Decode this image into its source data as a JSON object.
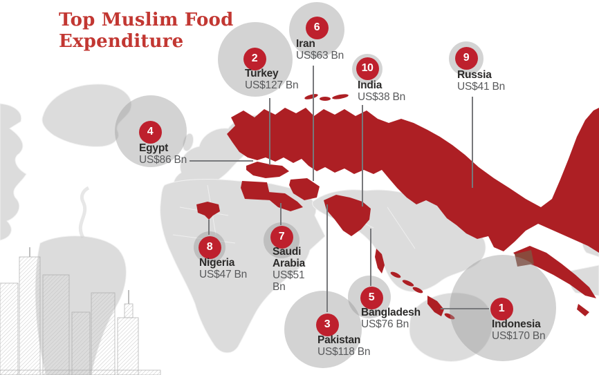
{
  "title": {
    "line1": "Top Muslim Food",
    "line2": "Expenditure"
  },
  "colors": {
    "title_red": "#c23732",
    "badge_red": "#be202d",
    "map_highlight_red": "#ad1f24",
    "land_gray": "#dcdcdc",
    "bubble_gray": "rgba(150,150,150,0.42)",
    "name_text": "#2b2a29",
    "value_text": "#58595b",
    "connector_gray": "#77787b"
  },
  "countries": [
    {
      "rank": 1,
      "name": "Indonesia",
      "value": "US$170 Bn"
    },
    {
      "rank": 2,
      "name": "Turkey",
      "value": "US$127 Bn"
    },
    {
      "rank": 3,
      "name": "Pakistan",
      "value": "US$118 Bn"
    },
    {
      "rank": 4,
      "name": "Egypt",
      "value": "US$86 Bn"
    },
    {
      "rank": 5,
      "name": "Bangladesh",
      "value": "US$76 Bn"
    },
    {
      "rank": 6,
      "name": "Iran",
      "value": "US$63 Bn"
    },
    {
      "rank": 7,
      "name": "Saudi Arabia",
      "value": "US$51 Bn"
    },
    {
      "rank": 8,
      "name": "Nigeria",
      "value": "US$47 Bn"
    },
    {
      "rank": 9,
      "name": "Russia",
      "value": "US$41 Bn"
    },
    {
      "rank": 10,
      "name": "India",
      "value": "US$38 Bn"
    }
  ],
  "chart_data": {
    "type": "bubble",
    "title": "Top Muslim Food Expenditure",
    "unit": "US$ Bn",
    "categories": [
      "Indonesia",
      "Turkey",
      "Pakistan",
      "Egypt",
      "Bangladesh",
      "Iran",
      "Saudi Arabia",
      "Nigeria",
      "Russia",
      "India"
    ],
    "values": [
      170,
      127,
      118,
      86,
      76,
      63,
      51,
      47,
      41,
      38
    ],
    "ranks": [
      1,
      2,
      3,
      4,
      5,
      6,
      7,
      8,
      9,
      10
    ],
    "layout_hint": "rank-numbered gray bubbles sized by expenditure, connected by leader lines to countries highlighted dark red on a light gray stylized world map; pencil-sketch city skyline in lower left"
  }
}
